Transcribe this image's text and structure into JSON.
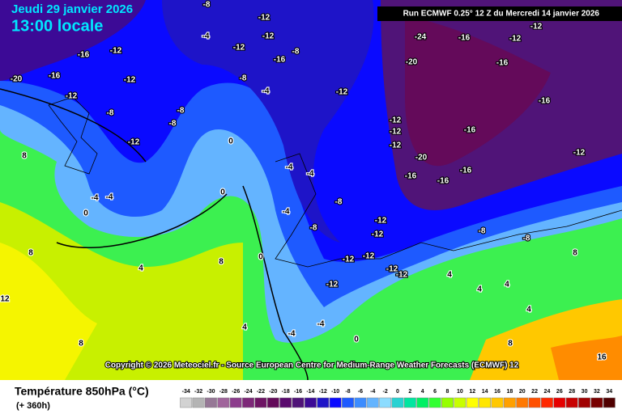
{
  "header": {
    "date": "Jeudi 29 janvier 2026",
    "time": "13:00 locale",
    "run": "Run ECMWF 0.25° 12 Z du Mercredi 14 janvier 2026"
  },
  "copyright": "Copyright © 2026 Meteociel.fr - Source European Centre for Medium-Range Weather Forecasts (ECMWF) 12",
  "legend": {
    "title": "Température 850hPa (°C)",
    "lead": "(+ 360h)",
    "values": [
      -34,
      -32,
      -30,
      -28,
      -26,
      -24,
      -22,
      -20,
      -18,
      -16,
      -14,
      -12,
      -10,
      -8,
      -6,
      -4,
      -2,
      0,
      2,
      4,
      6,
      8,
      10,
      12,
      14,
      16,
      18,
      20,
      22,
      24,
      26,
      28,
      30,
      32,
      34
    ],
    "colors": [
      "#d2d2d2",
      "#b4b4b4",
      "#967896",
      "#a0649b",
      "#8c3c8c",
      "#7d2878",
      "#6e1464",
      "#640a5a",
      "#5a0a6e",
      "#501478",
      "#3c0a96",
      "#1e14c8",
      "#0a0aff",
      "#1e5aff",
      "#3c8cff",
      "#64b4ff",
      "#8cdcff",
      "#28d2d2",
      "#00e6a0",
      "#00f064",
      "#32ff32",
      "#96ff00",
      "#c8ff00",
      "#ffff00",
      "#ffe600",
      "#ffc800",
      "#ffa000",
      "#ff7800",
      "#ff5000",
      "#ff2800",
      "#e60000",
      "#c80000",
      "#a00000",
      "#780000",
      "#500000"
    ]
  },
  "map_labels": [
    -8,
    -12,
    -4,
    -12,
    -12,
    -16,
    -12,
    -16,
    -8,
    -20,
    -16,
    -12,
    -8,
    -4,
    -12,
    -12,
    -8,
    -8,
    -8,
    -12,
    0,
    8,
    -4,
    -4,
    -12,
    -12,
    -12,
    -20,
    -16,
    -16,
    -16,
    -16,
    -16,
    -12,
    -24,
    -16,
    -12,
    -20,
    -12,
    -16,
    -4,
    -4,
    0,
    0,
    -4,
    8,
    4,
    8,
    0,
    -8,
    -8,
    -12,
    -12,
    -12,
    -12,
    -12,
    -12,
    -12,
    12,
    4,
    -4,
    -4,
    4,
    4,
    4,
    4,
    8,
    16,
    8,
    8,
    0,
    -8,
    -8
  ]
}
